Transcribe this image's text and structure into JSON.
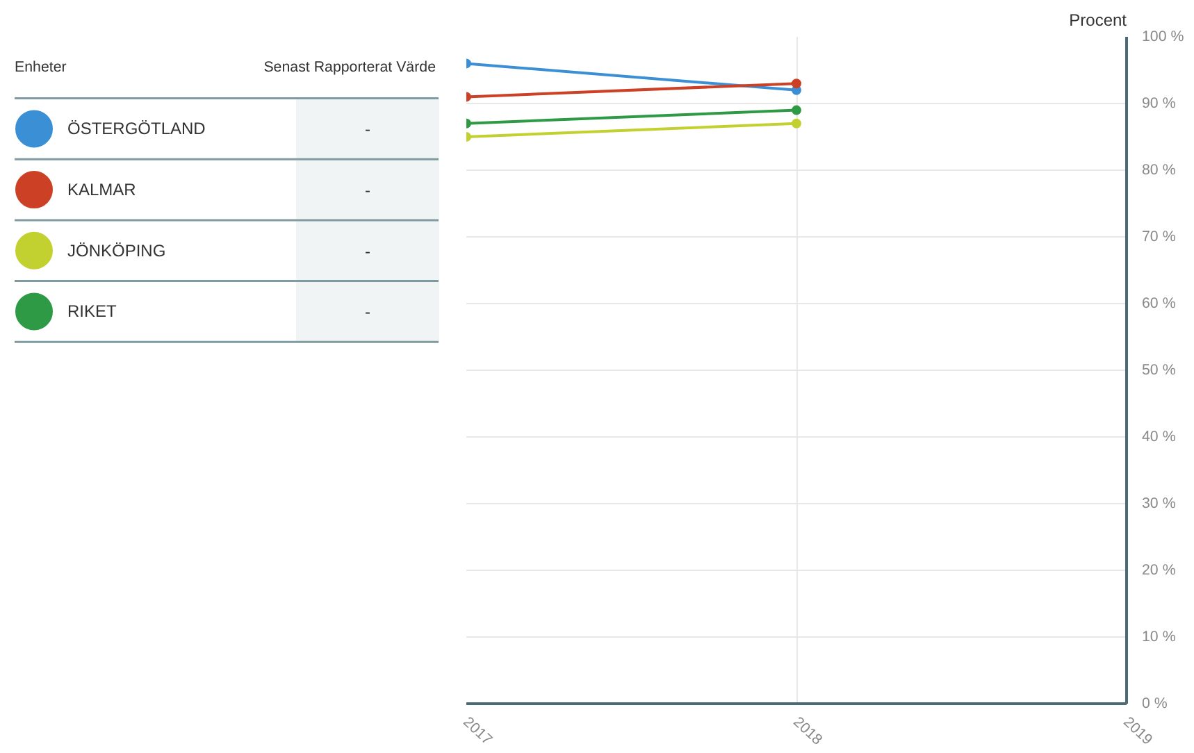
{
  "chart_data": {
    "type": "line",
    "ylabel": "Procent",
    "legend_title": "Enheter",
    "legend": "left",
    "annotations": [
      "Senast Rapporterat Värde",
      "-",
      "-",
      "-",
      "-"
    ],
    "x": [
      2017,
      2018
    ],
    "xlim": [
      2017,
      2019
    ],
    "xticks": [
      2017,
      2018,
      2019
    ],
    "ylim": [
      0,
      100
    ],
    "yticks": [
      {
        "value": 0,
        "label": "0 %"
      },
      {
        "value": 10,
        "label": "10 %"
      },
      {
        "value": 20,
        "label": "20 %"
      },
      {
        "value": 30,
        "label": "30 %"
      },
      {
        "value": 40,
        "label": "40 %"
      },
      {
        "value": 50,
        "label": "50 %"
      },
      {
        "value": 60,
        "label": "60 %"
      },
      {
        "value": 70,
        "label": "70 %"
      },
      {
        "value": 80,
        "label": "80 %"
      },
      {
        "value": 90,
        "label": "90 %"
      },
      {
        "value": 100,
        "label": "100 %"
      }
    ],
    "grid": true,
    "marker": "circle",
    "line_style": "solid",
    "series": [
      {
        "name": "ÖSTERGÖTLAND",
        "color": "#3b8fd4",
        "values": [
          96,
          92
        ]
      },
      {
        "name": "KALMAR",
        "color": "#cc4125",
        "values": [
          91,
          93
        ]
      },
      {
        "name": "JÖNKÖPING",
        "color": "#c3d130",
        "values": [
          85,
          87
        ]
      },
      {
        "name": "RIKET",
        "color": "#2e9a45",
        "values": [
          87,
          89
        ]
      }
    ]
  }
}
